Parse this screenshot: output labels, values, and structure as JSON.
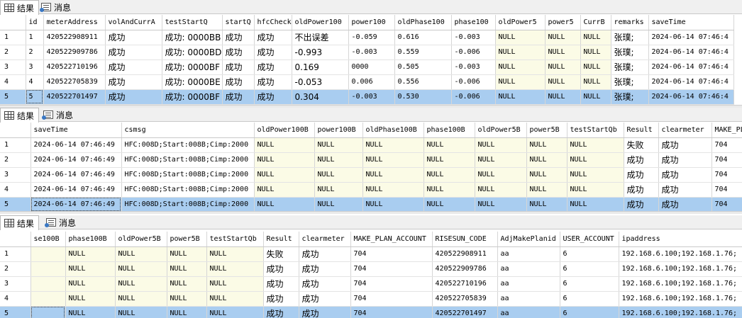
{
  "tabs": {
    "results": "结果",
    "messages": "消息"
  },
  "grid1": {
    "columns": [
      "",
      "id",
      "meterAddress",
      "volAndCurrA",
      "testStartQ",
      "startQ",
      "hfcCheck",
      "oldPower100",
      "power100",
      "oldPhase100",
      "phase100",
      "oldPower5",
      "power5",
      "CurrB",
      "remarks",
      "saveTime"
    ],
    "rows": [
      [
        "1",
        "1",
        "420522908911",
        "成功",
        "成功: 0000BB",
        "成功",
        "成功",
        "不出误差",
        "-0.059",
        "0.616",
        "-0.003",
        "NULL",
        "NULL",
        "NULL",
        "张璞;",
        "2024-06-14 07:46:4"
      ],
      [
        "2",
        "2",
        "420522909786",
        "成功",
        "成功: 0000BD",
        "成功",
        "成功",
        "-0.993",
        "-0.003",
        "0.559",
        "-0.006",
        "NULL",
        "NULL",
        "NULL",
        "张璞;",
        "2024-06-14 07:46:4"
      ],
      [
        "3",
        "3",
        "420522710196",
        "成功",
        "成功: 0000BF",
        "成功",
        "成功",
        "0.169",
        "0000",
        "0.505",
        "-0.003",
        "NULL",
        "NULL",
        "NULL",
        "张璞;",
        "2024-06-14 07:46:4"
      ],
      [
        "4",
        "4",
        "420522705839",
        "成功",
        "成功: 0000BE",
        "成功",
        "成功",
        "-0.053",
        "0.006",
        "0.556",
        "-0.006",
        "NULL",
        "NULL",
        "NULL",
        "张璞;",
        "2024-06-14 07:46:4"
      ],
      [
        "5",
        "5",
        "420522701497",
        "成功",
        "成功: 0000BF",
        "成功",
        "成功",
        "0.304",
        "-0.003",
        "0.530",
        "-0.006",
        "NULL",
        "NULL",
        "NULL",
        "张璞;",
        "2024-06-14 07:46:4"
      ]
    ]
  },
  "grid2": {
    "columns": [
      "",
      "saveTime",
      "csmsg",
      "oldPower100B",
      "power100B",
      "oldPhase100B",
      "phase100B",
      "oldPower5B",
      "power5B",
      "testStartQb",
      "Result",
      "clearmeter",
      "MAKE_PL"
    ],
    "rows": [
      [
        "1",
        "2024-06-14 07:46:49",
        "HFC:008D;Start:008B;Cimp:2000",
        "NULL",
        "NULL",
        "NULL",
        "NULL",
        "NULL",
        "NULL",
        "NULL",
        "失败",
        "成功",
        "704"
      ],
      [
        "2",
        "2024-06-14 07:46:49",
        "HFC:008D;Start:008B;Cimp:2000",
        "NULL",
        "NULL",
        "NULL",
        "NULL",
        "NULL",
        "NULL",
        "NULL",
        "成功",
        "成功",
        "704"
      ],
      [
        "3",
        "2024-06-14 07:46:49",
        "HFC:008D;Start:008B;Cimp:2000",
        "NULL",
        "NULL",
        "NULL",
        "NULL",
        "NULL",
        "NULL",
        "NULL",
        "成功",
        "成功",
        "704"
      ],
      [
        "4",
        "2024-06-14 07:46:49",
        "HFC:008D;Start:008B;Cimp:2000",
        "NULL",
        "NULL",
        "NULL",
        "NULL",
        "NULL",
        "NULL",
        "NULL",
        "成功",
        "成功",
        "704"
      ],
      [
        "5",
        "2024-06-14 07:46:49",
        "HFC:008D;Start:008B;Cimp:2000",
        "NULL",
        "NULL",
        "NULL",
        "NULL",
        "NULL",
        "NULL",
        "NULL",
        "成功",
        "成功",
        "704"
      ]
    ]
  },
  "grid3": {
    "columns": [
      "",
      "se100B",
      "phase100B",
      "oldPower5B",
      "power5B",
      "testStartQb",
      "Result",
      "clearmeter",
      "MAKE_PLAN_ACCOUNT",
      "RISESUN_CODE",
      "AdjMakePlanid",
      "USER_ACCOUNT",
      "ipaddress"
    ],
    "rows": [
      [
        "1",
        "",
        "NULL",
        "NULL",
        "NULL",
        "NULL",
        "失败",
        "成功",
        "704",
        "420522908911",
        "aa",
        "6",
        "192.168.6.100;192.168.1.76;"
      ],
      [
        "2",
        "",
        "NULL",
        "NULL",
        "NULL",
        "NULL",
        "成功",
        "成功",
        "704",
        "420522909786",
        "aa",
        "6",
        "192.168.6.100;192.168.1.76;"
      ],
      [
        "3",
        "",
        "NULL",
        "NULL",
        "NULL",
        "NULL",
        "成功",
        "成功",
        "704",
        "420522710196",
        "aa",
        "6",
        "192.168.6.100;192.168.1.76;"
      ],
      [
        "4",
        "",
        "NULL",
        "NULL",
        "NULL",
        "NULL",
        "成功",
        "成功",
        "704",
        "420522705839",
        "aa",
        "6",
        "192.168.6.100;192.168.1.76;"
      ],
      [
        "5",
        "",
        "NULL",
        "NULL",
        "NULL",
        "NULL",
        "成功",
        "成功",
        "704",
        "420522701497",
        "aa",
        "6",
        "192.168.6.100;192.168.1.76;"
      ]
    ]
  },
  "colors": {
    "selected_row": "#a9cdf0",
    "null_cell": "#fbfbe6",
    "tab_bar": "#f0f0f0"
  }
}
